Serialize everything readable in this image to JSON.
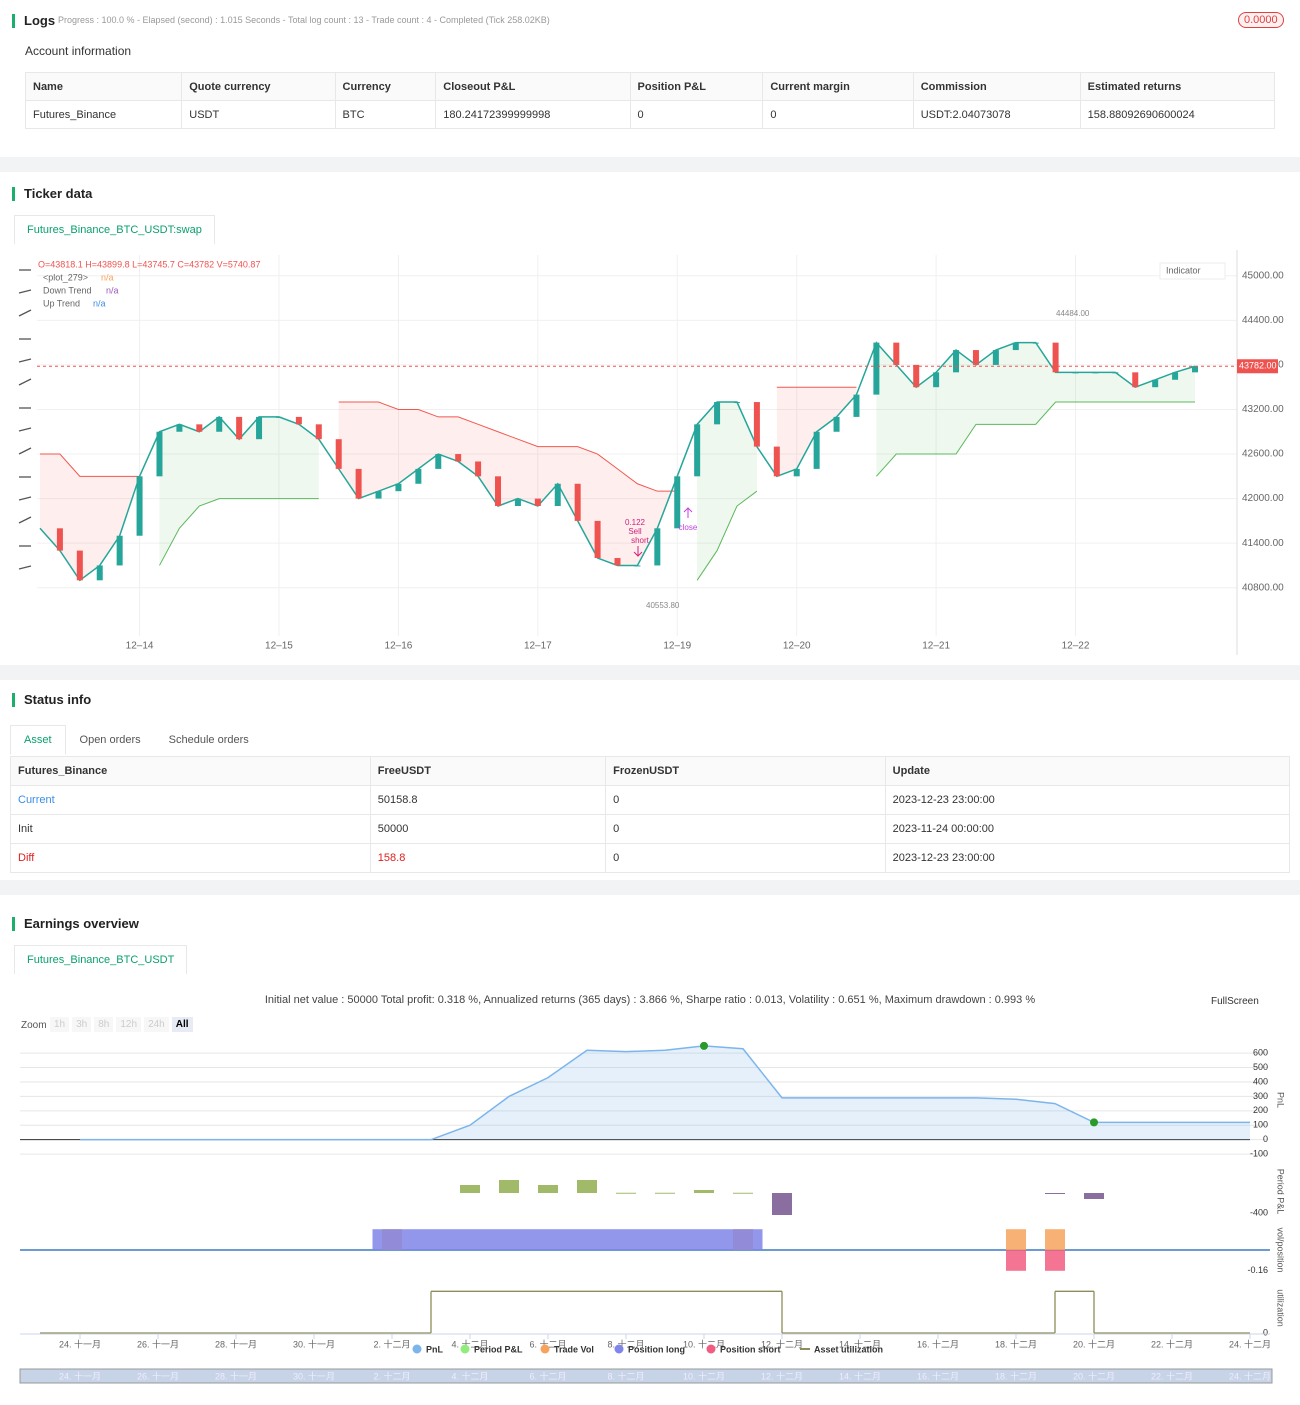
{
  "logs": {
    "title": "Logs",
    "progress": "Progress : 100.0 % - Elapsed (second) : 1.015  Seconds - Total log count : 13 - Trade count : 4 - Completed (Tick 258.02KB)",
    "badge": "0.0000"
  },
  "account": {
    "title": "Account information",
    "columns": [
      "Name",
      "Quote currency",
      "Currency",
      "Closeout P&L",
      "Position P&L",
      "Current margin",
      "Commission",
      "Estimated returns"
    ],
    "rows": [
      [
        "Futures_Binance",
        "USDT",
        "BTC",
        180.24172399999998,
        0,
        0,
        "USDT:2.04073078",
        158.88092690600024
      ]
    ]
  },
  "ticker": {
    "title": "Ticker data",
    "tab": "Futures_Binance_BTC_USDT:swap",
    "indicator": "Indicator",
    "ohlc": "O=43818.1 H=43899.8 L=43745.7 C=43782 V=5740.87",
    "plot_label": "<plot_279>",
    "na": "n/a"
  },
  "status": {
    "title": "Status info",
    "tabs": [
      "Asset",
      "Open orders",
      "Schedule orders"
    ],
    "columns": [
      "Futures_Binance",
      "FreeUSDT",
      "FrozenUSDT",
      "Update"
    ],
    "rows": [
      [
        "Current",
        50158.8,
        0,
        "2023-12-23 23:00:00"
      ],
      [
        "Init",
        50000,
        0,
        "2023-11-24 00:00:00"
      ],
      [
        "Diff",
        158.8,
        0,
        "2023-12-23 23:00:00"
      ]
    ]
  },
  "earnings": {
    "title": "Earnings overview",
    "tab": "Futures_Binance_BTC_USDT",
    "summary": "Initial net value : 50000 Total profit: 0.318 %, Annualized returns (365 days) : 3.866 %, Sharpe ratio : 0.013, Volatility : 0.651 %, Maximum drawdown : 0.993 %",
    "zoom": "Zoom",
    "zoom_buttons": [
      "1h",
      "3h",
      "8h",
      "12h",
      "24h",
      "All"
    ],
    "fullscreen": "FullScreen"
  },
  "chart_data": [
    {
      "type": "line",
      "color": "#26a69a",
      "categories": [
        null,
        null,
        null,
        null,
        null,
        "12–14",
        null,
        null,
        null,
        null,
        null,
        null,
        "12–15",
        null,
        null,
        null,
        null,
        null,
        "12–16",
        null,
        null,
        null,
        null,
        null,
        null,
        "12–17",
        null,
        null,
        null,
        null,
        null,
        null,
        "12–19",
        null,
        null,
        null,
        null,
        null,
        "12–20",
        null,
        null,
        null,
        null,
        null,
        null,
        "12–21",
        null,
        null,
        null,
        null,
        null,
        null,
        "12–22",
        null,
        null,
        null,
        null,
        null,
        null
      ],
      "values": [
        41600,
        41300,
        40900,
        41100,
        41500,
        42300,
        42900,
        43000,
        42900,
        43100,
        42800,
        43100,
        43100,
        43000,
        42800,
        42400,
        42000,
        42100,
        42200,
        42400,
        42600,
        42500,
        42300,
        41900,
        42000,
        41900,
        42200,
        41700,
        41200,
        41100,
        41100,
        41600,
        42300,
        43000,
        43300,
        43300,
        42700,
        42300,
        42400,
        42900,
        43100,
        43400,
        44100,
        43800,
        43500,
        43700,
        44000,
        43800,
        44000,
        44100,
        44100,
        43700,
        43700,
        43700,
        43700,
        43500,
        43600,
        43700,
        43782
      ],
      "series": [
        {
          "name": "Down Trend",
          "color": "#f2584f",
          "values": [
            42600,
            42600,
            42300,
            42300,
            42300,
            42300,
            null,
            null,
            null,
            null,
            null,
            null,
            null,
            null,
            null,
            43300,
            43300,
            43300,
            43200,
            43200,
            43100,
            43100,
            43000,
            42900,
            42800,
            42700,
            42700,
            42700,
            42600,
            42400,
            42200,
            42100,
            42100,
            null,
            null,
            null,
            null,
            43500,
            43500,
            43500,
            43500,
            43500,
            null,
            null,
            null,
            null,
            null,
            null,
            null,
            null,
            null,
            null,
            null,
            null,
            null,
            null,
            null,
            null,
            null
          ]
        },
        {
          "name": "Up Trend",
          "color": "#5cb85c",
          "values": [
            null,
            null,
            null,
            null,
            null,
            null,
            41100,
            41600,
            41900,
            42000,
            42000,
            42000,
            42000,
            42000,
            42000,
            null,
            null,
            null,
            null,
            null,
            null,
            null,
            null,
            null,
            null,
            null,
            null,
            null,
            null,
            null,
            null,
            null,
            null,
            40900,
            41300,
            41900,
            42100,
            null,
            null,
            null,
            null,
            null,
            42300,
            42600,
            42600,
            42600,
            42600,
            43000,
            43000,
            43000,
            43000,
            43300,
            43300,
            43300,
            43300,
            43300,
            43300,
            43300,
            43300
          ]
        }
      ],
      "ylim": [
        40150,
        45280
      ],
      "yticks": [
        {
          "value": 45000,
          "label": "45000.00"
        },
        {
          "value": 44400,
          "label": "44400.00"
        },
        {
          "value": 43800,
          "label": "43800.00"
        },
        {
          "value": 43200,
          "label": "43200.00"
        },
        {
          "value": 42600,
          "label": "42600.00"
        },
        {
          "value": 42000,
          "label": "42000.00"
        },
        {
          "value": 41400,
          "label": "41400.00"
        },
        {
          "value": 40800,
          "label": "40800.00"
        }
      ],
      "last_price": {
        "value": 43782,
        "label": "43782.00"
      },
      "high_mark": {
        "value": 44484,
        "label": "44484.00"
      },
      "low_mark": {
        "value": 40553.8,
        "label": "40553.80"
      },
      "trades": [
        {
          "label": "Sell",
          "side": "short",
          "amount": 0.122
        },
        {
          "label": "close"
        }
      ],
      "grid": true
    },
    {
      "type": "area",
      "name": "PnL",
      "color": "#7cb5ec",
      "categories": [
        "24. 十一月",
        null,
        "26. 十一月",
        null,
        "28. 十一月",
        null,
        "30. 十一月",
        null,
        "2. 十二月",
        null,
        "4. 十二月",
        null,
        "6. 十二月",
        null,
        "8. 十二月",
        null,
        "10. 十二月",
        null,
        "12. 十二月",
        null,
        "14. 十二月",
        null,
        "16. 十二月",
        null,
        "18. 十二月",
        null,
        "20. 十二月",
        null,
        "22. 十二月",
        null,
        "24. 十二月"
      ],
      "values": [
        0,
        0,
        0,
        0,
        0,
        0,
        0,
        0,
        0,
        0,
        100,
        300,
        430,
        620,
        610,
        620,
        650,
        630,
        290,
        290,
        290,
        290,
        290,
        290,
        280,
        250,
        120,
        120,
        120,
        120,
        120
      ],
      "ylim": [
        -120,
        670
      ],
      "yticks": [
        600,
        500,
        400,
        300,
        200,
        100,
        0,
        -100
      ],
      "grid": true
    },
    {
      "type": "bar",
      "name": "Period P&L",
      "color": "#90ed7d",
      "positive_color": "#8fae4f",
      "negative_color": "#77558f",
      "values": [
        null,
        null,
        null,
        null,
        null,
        null,
        null,
        null,
        null,
        null,
        160,
        260,
        160,
        260,
        5,
        5,
        60,
        5,
        -440,
        null,
        null,
        null,
        null,
        null,
        null,
        -5,
        -120,
        null,
        null,
        null,
        null
      ],
      "ylim": [
        -500,
        560
      ],
      "yticks": [
        -400
      ]
    },
    {
      "type": "bar",
      "name": "vol/position",
      "series": [
        {
          "name": "Trade Vol",
          "color": "#f7a35c",
          "values": [
            null,
            null,
            null,
            null,
            null,
            null,
            null,
            null,
            0.16,
            null,
            null,
            null,
            null,
            null,
            null,
            null,
            null,
            0.16,
            null,
            null,
            null,
            null,
            null,
            null,
            0.16,
            0.16,
            null,
            null,
            null,
            null,
            null
          ]
        },
        {
          "name": "Position long",
          "color": "#8085e9",
          "values": [
            null,
            null,
            null,
            null,
            null,
            null,
            null,
            null,
            0.16,
            0.16,
            0.16,
            0.16,
            0.16,
            0.16,
            0.16,
            0.16,
            0.16,
            0.16,
            null,
            null,
            null,
            null,
            null,
            null,
            null,
            null,
            null,
            null,
            null,
            null,
            null
          ]
        },
        {
          "name": "Position short",
          "color": "#f15c80",
          "values": [
            null,
            null,
            null,
            null,
            null,
            null,
            null,
            null,
            null,
            null,
            null,
            null,
            null,
            null,
            null,
            null,
            null,
            null,
            null,
            null,
            null,
            null,
            null,
            null,
            -0.16,
            -0.16,
            null,
            null,
            null,
            null,
            null
          ]
        }
      ],
      "ylim": [
        -0.2,
        0.2
      ],
      "yticks": [
        -0.16
      ]
    },
    {
      "type": "step",
      "name": "Asset utilization",
      "y_label": "utilization",
      "color": "#8d8d5a",
      "values": [
        0,
        0,
        0,
        0,
        0,
        0,
        0,
        0,
        0,
        1,
        1,
        1,
        1,
        1,
        1,
        1,
        1,
        1,
        0,
        0,
        0,
        0,
        0,
        0,
        0,
        1,
        0,
        0,
        0,
        0,
        0
      ],
      "ylim": [
        0,
        1.2
      ],
      "yticks": [
        0
      ]
    }
  ]
}
